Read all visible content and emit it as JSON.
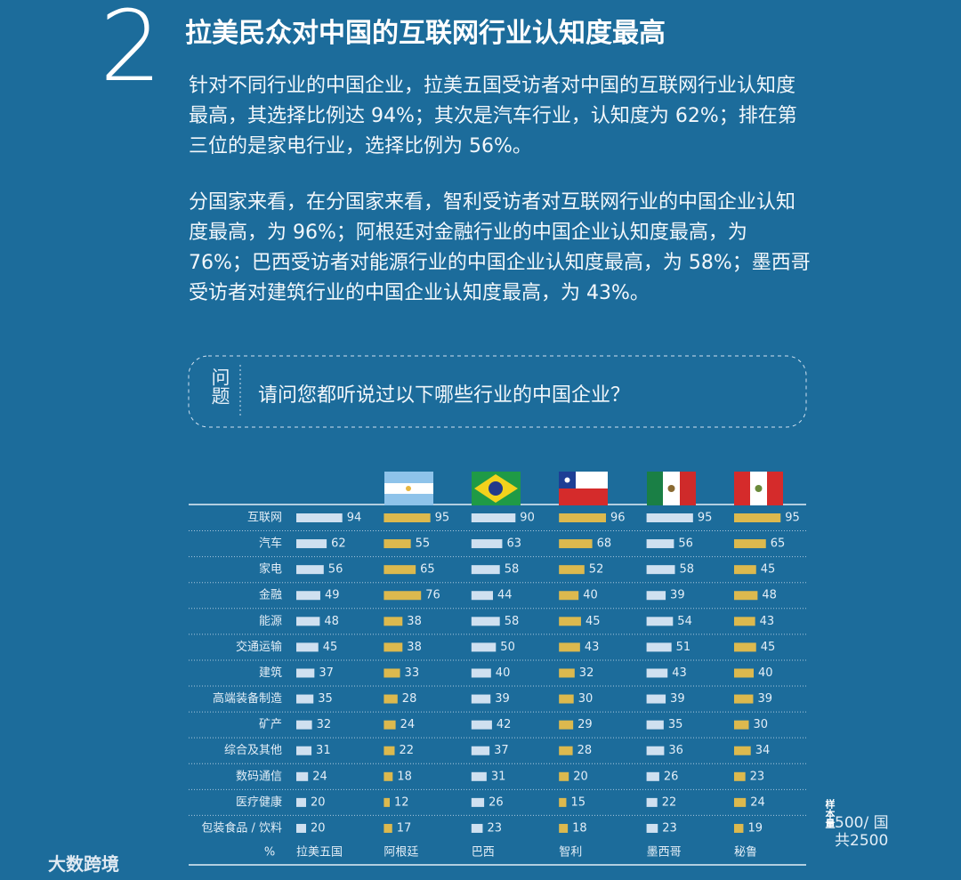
{
  "header": {
    "number": "2",
    "title": "拉美民众对中国的互联网行业认知度最高"
  },
  "paragraphs": [
    "针对不同行业的中国企业，拉美五国受访者对中国的互联网行业认知度最高，其选择比例达 94%；其次是汽车行业，认知度为 62%；排在第三位的是家电行业，选择比例为 56%。",
    "分国家来看，在分国家来看，智利受访者对互联网行业的中国企业认知度最高，为 96%；阿根廷对金融行业的中国企业认知度最高，为 76%；巴西受访者对能源行业的中国企业认知度最高，为 58%；墨西哥受访者对建筑行业的中国企业认知度最高，为 43%。"
  ],
  "question": {
    "label": "问题",
    "text": "请问您都听说过以下哪些行业的中国企业？"
  },
  "chart_data": {
    "type": "bar",
    "unit_label": "%",
    "categories": [
      "互联网",
      "汽车",
      "家电",
      "金融",
      "能源",
      "交通运输",
      "建筑",
      "高端装备制造",
      "矿产",
      "综合及其他",
      "数码通信",
      "医疗健康",
      "包装食品 / 饮料"
    ],
    "series": [
      {
        "name": "拉美五国",
        "color": "#cfe0f0",
        "values": [
          94,
          62,
          56,
          49,
          48,
          45,
          37,
          35,
          32,
          31,
          24,
          20,
          20
        ]
      },
      {
        "name": "阿根廷",
        "color": "#dcb94e",
        "values": [
          95,
          55,
          65,
          76,
          38,
          38,
          33,
          28,
          24,
          22,
          18,
          12,
          17
        ]
      },
      {
        "name": "巴西",
        "color": "#cfe0f0",
        "values": [
          90,
          63,
          58,
          44,
          58,
          50,
          40,
          39,
          42,
          37,
          31,
          26,
          23
        ]
      },
      {
        "name": "智利",
        "color": "#dcb94e",
        "values": [
          96,
          68,
          52,
          40,
          45,
          43,
          32,
          30,
          29,
          28,
          20,
          15,
          18
        ]
      },
      {
        "name": "墨西哥",
        "color": "#cfe0f0",
        "values": [
          95,
          56,
          58,
          39,
          54,
          51,
          43,
          39,
          35,
          36,
          26,
          22,
          23
        ]
      },
      {
        "name": "秘鲁",
        "color": "#dcb94e",
        "values": [
          95,
          65,
          45,
          48,
          43,
          45,
          40,
          39,
          30,
          34,
          23,
          24,
          19
        ]
      }
    ]
  },
  "sample": {
    "label": "样本量",
    "per_country": "500/ 国",
    "total": "共2500"
  },
  "logo": "大数跨境"
}
